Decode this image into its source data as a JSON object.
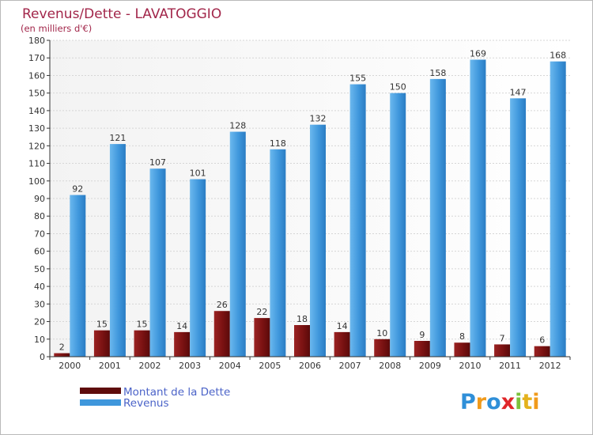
{
  "title": "Revenus/Dette - LAVATOGGIO",
  "subtitle": "(en milliers d'€)",
  "logo": {
    "text": "Proxiti",
    "letters": [
      {
        "ch": "P",
        "color": "#2f8fd8"
      },
      {
        "ch": "r",
        "color": "#f09a1b"
      },
      {
        "ch": "o",
        "color": "#2f8fd8"
      },
      {
        "ch": "x",
        "color": "#e0262a"
      },
      {
        "ch": "i",
        "color": "#7cc13b"
      },
      {
        "ch": "t",
        "color": "#e4b21d"
      },
      {
        "ch": "i",
        "color": "#f09a1b"
      }
    ]
  },
  "chart_data": {
    "type": "bar",
    "title": "Revenus/Dette - LAVATOGGIO",
    "subtitle": "(en milliers d'€)",
    "categories": [
      "2000",
      "2001",
      "2002",
      "2003",
      "2004",
      "2005",
      "2006",
      "2007",
      "2008",
      "2009",
      "2010",
      "2011",
      "2012"
    ],
    "series": [
      {
        "name": "Montant de la Dette",
        "color": "#7a1212",
        "values": [
          2,
          15,
          15,
          14,
          26,
          22,
          18,
          14,
          10,
          9,
          8,
          7,
          6
        ]
      },
      {
        "name": "Revenus",
        "color": "#3f97dc",
        "values": [
          92,
          121,
          107,
          101,
          128,
          118,
          132,
          155,
          150,
          158,
          169,
          147,
          168
        ]
      }
    ],
    "ylim": [
      0,
      180
    ],
    "ytick_step": 10,
    "yticks": [
      "0",
      "10",
      "20",
      "30",
      "40",
      "50",
      "60",
      "70",
      "80",
      "90",
      "100",
      "110",
      "120",
      "130",
      "140",
      "150",
      "160",
      "170",
      "180"
    ],
    "grid": true,
    "legend_position": "bottom-left",
    "xlabel": "",
    "ylabel": ""
  }
}
